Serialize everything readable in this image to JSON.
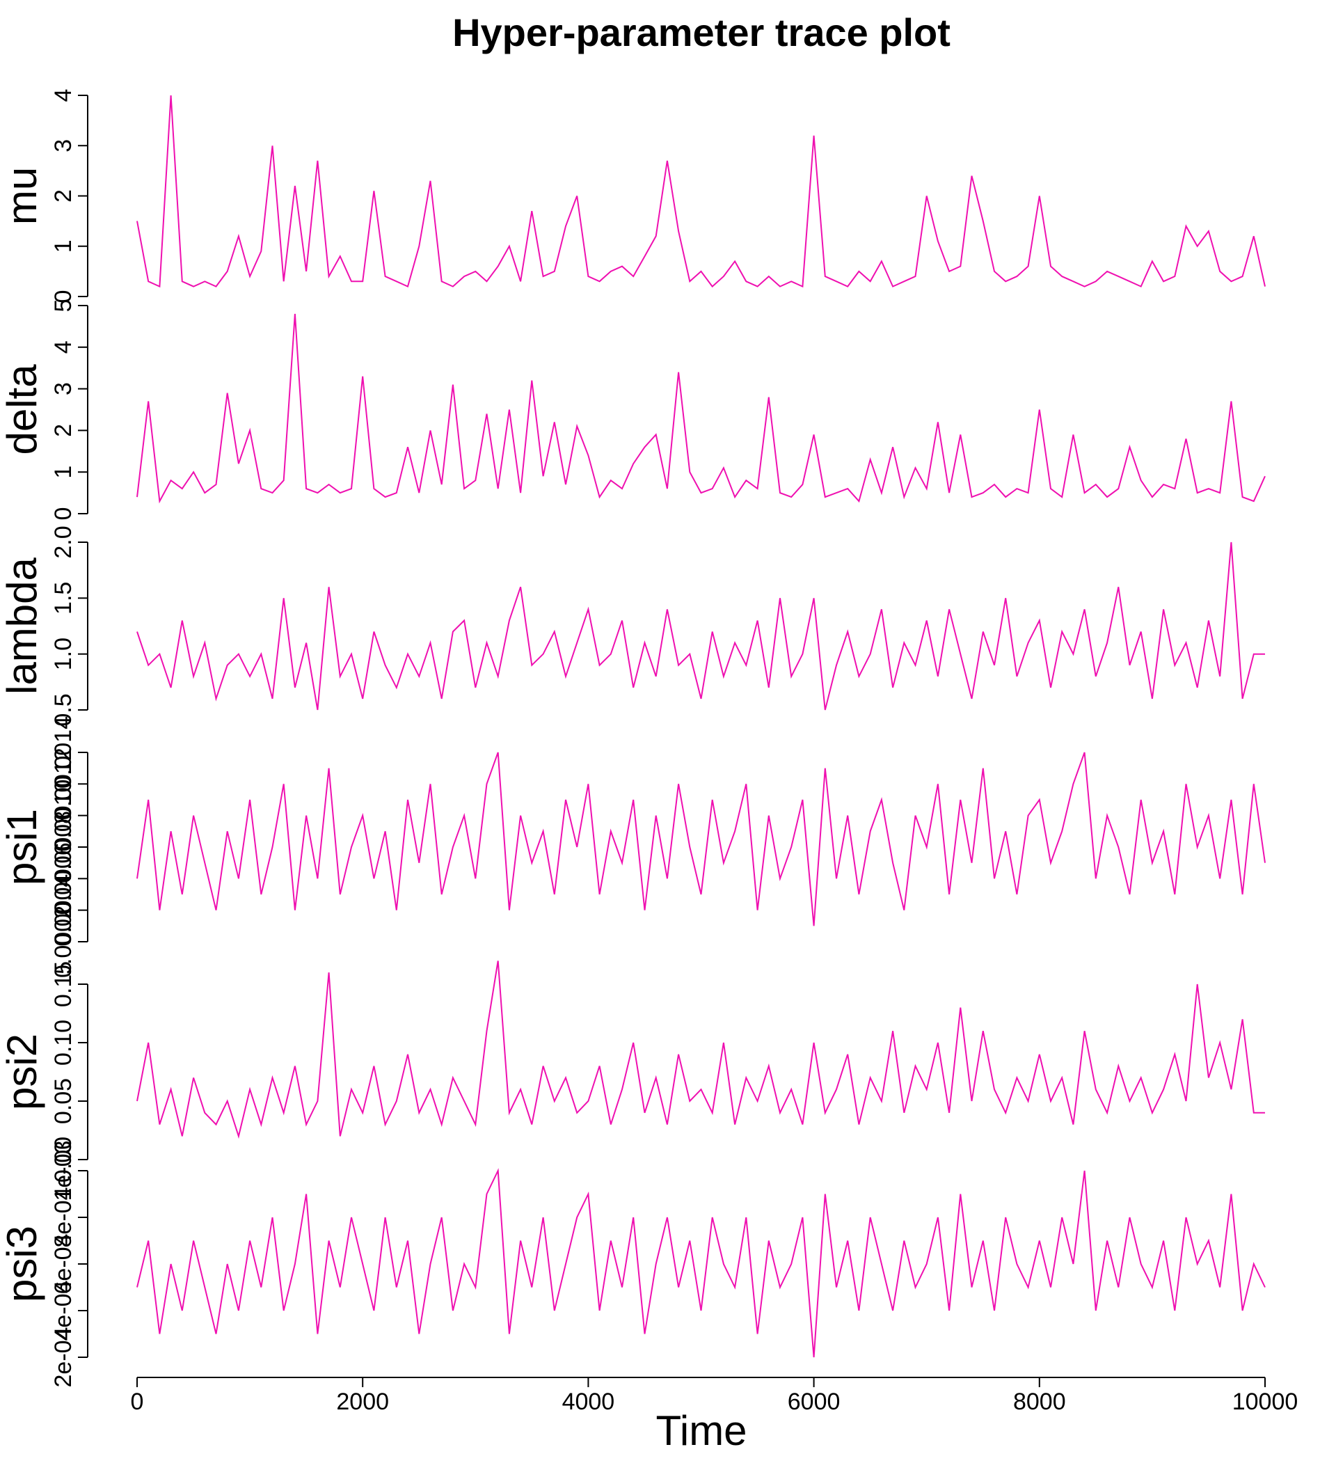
{
  "title": "Hyper-parameter trace plot",
  "chart_data": {
    "type": "line",
    "xlabel": "Time",
    "color": "#ef10b0",
    "xlim": [
      0,
      10000
    ],
    "xticks": [
      0,
      2000,
      4000,
      6000,
      8000,
      10000
    ],
    "x": [
      0,
      100,
      200,
      300,
      400,
      500,
      600,
      700,
      800,
      900,
      1000,
      1100,
      1200,
      1300,
      1400,
      1500,
      1600,
      1700,
      1800,
      1900,
      2000,
      2100,
      2200,
      2300,
      2400,
      2500,
      2600,
      2700,
      2800,
      2900,
      3000,
      3100,
      3200,
      3300,
      3400,
      3500,
      3600,
      3700,
      3800,
      3900,
      4000,
      4100,
      4200,
      4300,
      4400,
      4500,
      4600,
      4700,
      4800,
      4900,
      5000,
      5100,
      5200,
      5300,
      5400,
      5500,
      5600,
      5700,
      5800,
      5900,
      6000,
      6100,
      6200,
      6300,
      6400,
      6500,
      6600,
      6700,
      6800,
      6900,
      7000,
      7100,
      7200,
      7300,
      7400,
      7500,
      7600,
      7700,
      7800,
      7900,
      8000,
      8100,
      8200,
      8300,
      8400,
      8500,
      8600,
      8700,
      8800,
      8900,
      9000,
      9100,
      9200,
      9300,
      9400,
      9500,
      9600,
      9700,
      9800,
      9900,
      10000
    ],
    "panels": [
      {
        "ylabel": "mu",
        "ylim": [
          0,
          4
        ],
        "yticks": [
          0,
          1,
          2,
          3,
          4
        ],
        "values": [
          1.5,
          0.3,
          0.2,
          4.0,
          0.3,
          0.2,
          0.3,
          0.2,
          0.5,
          1.2,
          0.4,
          0.9,
          3.0,
          0.3,
          2.2,
          0.5,
          2.7,
          0.4,
          0.8,
          0.3,
          0.3,
          2.1,
          0.4,
          0.3,
          0.2,
          1.0,
          2.3,
          0.3,
          0.2,
          0.4,
          0.5,
          0.3,
          0.6,
          1.0,
          0.3,
          1.7,
          0.4,
          0.5,
          1.4,
          2.0,
          0.4,
          0.3,
          0.5,
          0.6,
          0.4,
          0.8,
          1.2,
          2.7,
          1.3,
          0.3,
          0.5,
          0.2,
          0.4,
          0.7,
          0.3,
          0.2,
          0.4,
          0.2,
          0.3,
          0.2,
          3.2,
          0.4,
          0.3,
          0.2,
          0.5,
          0.3,
          0.7,
          0.2,
          0.3,
          0.4,
          2.0,
          1.1,
          0.5,
          0.6,
          2.4,
          1.5,
          0.5,
          0.3,
          0.4,
          0.6,
          2.0,
          0.6,
          0.4,
          0.3,
          0.2,
          0.3,
          0.5,
          0.4,
          0.3,
          0.2,
          0.7,
          0.3,
          0.4,
          1.4,
          1.0,
          1.3,
          0.5,
          0.3,
          0.4,
          1.2,
          0.2
        ]
      },
      {
        "ylabel": "delta",
        "ylim": [
          0,
          5
        ],
        "yticks": [
          0,
          1,
          2,
          3,
          4,
          5
        ],
        "values": [
          0.4,
          2.7,
          0.3,
          0.8,
          0.6,
          1.0,
          0.5,
          0.7,
          2.9,
          1.2,
          2.0,
          0.6,
          0.5,
          0.8,
          4.8,
          0.6,
          0.5,
          0.7,
          0.5,
          0.6,
          3.3,
          0.6,
          0.4,
          0.5,
          1.6,
          0.5,
          2.0,
          0.7,
          3.1,
          0.6,
          0.8,
          2.4,
          0.6,
          2.5,
          0.5,
          3.2,
          0.9,
          2.2,
          0.7,
          2.1,
          1.4,
          0.4,
          0.8,
          0.6,
          1.2,
          1.6,
          1.9,
          0.6,
          3.4,
          1.0,
          0.5,
          0.6,
          1.1,
          0.4,
          0.8,
          0.6,
          2.8,
          0.5,
          0.4,
          0.7,
          1.9,
          0.4,
          0.5,
          0.6,
          0.3,
          1.3,
          0.5,
          1.6,
          0.4,
          1.1,
          0.6,
          2.2,
          0.5,
          1.9,
          0.4,
          0.5,
          0.7,
          0.4,
          0.6,
          0.5,
          2.5,
          0.6,
          0.4,
          1.9,
          0.5,
          0.7,
          0.4,
          0.6,
          1.6,
          0.8,
          0.4,
          0.7,
          0.6,
          1.8,
          0.5,
          0.6,
          0.5,
          2.7,
          0.4,
          0.3,
          0.9
        ]
      },
      {
        "ylabel": "lambda",
        "ylim": [
          0.5,
          2
        ],
        "yticks": [
          0.5,
          {
            "value": 1,
            "label": "1.0"
          },
          1.5,
          {
            "value": 2,
            "label": "2.0"
          }
        ],
        "values": [
          1.2,
          0.9,
          1.0,
          0.7,
          1.3,
          0.8,
          1.1,
          0.6,
          0.9,
          1.0,
          0.8,
          1.0,
          0.6,
          1.5,
          0.7,
          1.1,
          0.5,
          1.6,
          0.8,
          1.0,
          0.6,
          1.2,
          0.9,
          0.7,
          1.0,
          0.8,
          1.1,
          0.6,
          1.2,
          1.3,
          0.7,
          1.1,
          0.8,
          1.3,
          1.6,
          0.9,
          1.0,
          1.2,
          0.8,
          1.1,
          1.4,
          0.9,
          1.0,
          1.3,
          0.7,
          1.1,
          0.8,
          1.4,
          0.9,
          1.0,
          0.6,
          1.2,
          0.8,
          1.1,
          0.9,
          1.3,
          0.7,
          1.5,
          0.8,
          1.0,
          1.5,
          0.5,
          0.9,
          1.2,
          0.8,
          1.0,
          1.4,
          0.7,
          1.1,
          0.9,
          1.3,
          0.8,
          1.4,
          1.0,
          0.6,
          1.2,
          0.9,
          1.5,
          0.8,
          1.1,
          1.3,
          0.7,
          1.2,
          1.0,
          1.4,
          0.8,
          1.1,
          1.6,
          0.9,
          1.2,
          0.6,
          1.4,
          0.9,
          1.1,
          0.7,
          1.3,
          0.8,
          2.0,
          0.6,
          1.0,
          1.0
        ]
      },
      {
        "ylabel": "psi1",
        "ylim": [
          0.0002,
          0.0014
        ],
        "yticks": [
          0.0002,
          0.0004,
          0.0006,
          0.0008,
          {
            "value": 0.001,
            "label": "0.0010"
          },
          0.0012,
          0.0014
        ],
        "values": [
          0.0006,
          0.0011,
          0.0004,
          0.0009,
          0.0005,
          0.001,
          0.0007,
          0.0004,
          0.0009,
          0.0006,
          0.0011,
          0.0005,
          0.0008,
          0.0012,
          0.0004,
          0.001,
          0.0006,
          0.0013,
          0.0005,
          0.0008,
          0.001,
          0.0006,
          0.0009,
          0.0004,
          0.0011,
          0.0007,
          0.0012,
          0.0005,
          0.0008,
          0.001,
          0.0006,
          0.0012,
          0.0014,
          0.0004,
          0.001,
          0.0007,
          0.0009,
          0.0005,
          0.0011,
          0.0008,
          0.0012,
          0.0005,
          0.0009,
          0.0007,
          0.0011,
          0.0004,
          0.001,
          0.0006,
          0.0012,
          0.0008,
          0.0005,
          0.0011,
          0.0007,
          0.0009,
          0.0012,
          0.0004,
          0.001,
          0.0006,
          0.0008,
          0.0011,
          0.0003,
          0.0013,
          0.0006,
          0.001,
          0.0005,
          0.0009,
          0.0011,
          0.0007,
          0.0004,
          0.001,
          0.0008,
          0.0012,
          0.0005,
          0.0011,
          0.0007,
          0.0013,
          0.0006,
          0.0009,
          0.0005,
          0.001,
          0.0011,
          0.0007,
          0.0009,
          0.0012,
          0.0014,
          0.0006,
          0.001,
          0.0008,
          0.0005,
          0.0011,
          0.0007,
          0.0009,
          0.0005,
          0.0012,
          0.0008,
          0.001,
          0.0006,
          0.0011,
          0.0005,
          0.0012,
          0.0007
        ]
      },
      {
        "ylabel": "psi2",
        "ylim": [
          0,
          0.15
        ],
        "yticks": [
          {
            "value": 0,
            "label": "0.00"
          },
          0.05,
          {
            "value": 0.1,
            "label": "0.10"
          },
          0.15
        ],
        "values": [
          0.05,
          0.1,
          0.03,
          0.06,
          0.02,
          0.07,
          0.04,
          0.03,
          0.05,
          0.02,
          0.06,
          0.03,
          0.07,
          0.04,
          0.08,
          0.03,
          0.05,
          0.16,
          0.02,
          0.06,
          0.04,
          0.08,
          0.03,
          0.05,
          0.09,
          0.04,
          0.06,
          0.03,
          0.07,
          0.05,
          0.03,
          0.11,
          0.17,
          0.04,
          0.06,
          0.03,
          0.08,
          0.05,
          0.07,
          0.04,
          0.05,
          0.08,
          0.03,
          0.06,
          0.1,
          0.04,
          0.07,
          0.03,
          0.09,
          0.05,
          0.06,
          0.04,
          0.1,
          0.03,
          0.07,
          0.05,
          0.08,
          0.04,
          0.06,
          0.03,
          0.1,
          0.04,
          0.06,
          0.09,
          0.03,
          0.07,
          0.05,
          0.11,
          0.04,
          0.08,
          0.06,
          0.1,
          0.04,
          0.13,
          0.05,
          0.11,
          0.06,
          0.04,
          0.07,
          0.05,
          0.09,
          0.05,
          0.07,
          0.03,
          0.11,
          0.06,
          0.04,
          0.08,
          0.05,
          0.07,
          0.04,
          0.06,
          0.09,
          0.05,
          0.15,
          0.07,
          0.1,
          0.06,
          0.12,
          0.04,
          0.04
        ]
      },
      {
        "ylabel": "psi3",
        "ylim": [
          0.0002,
          0.001
        ],
        "yticks": [
          {
            "value": 0.0002,
            "label": "2e-04"
          },
          {
            "value": 0.0004,
            "label": "4e-04"
          },
          {
            "value": 0.0006,
            "label": "6e-04"
          },
          {
            "value": 0.0008,
            "label": "8e-04"
          },
          {
            "value": 0.001,
            "label": "1e-03"
          }
        ],
        "values": [
          0.0005,
          0.0007,
          0.0003,
          0.0006,
          0.0004,
          0.0007,
          0.0005,
          0.0003,
          0.0006,
          0.0004,
          0.0007,
          0.0005,
          0.0008,
          0.0004,
          0.0006,
          0.0009,
          0.0003,
          0.0007,
          0.0005,
          0.0008,
          0.0006,
          0.0004,
          0.0008,
          0.0005,
          0.0007,
          0.0003,
          0.0006,
          0.0008,
          0.0004,
          0.0006,
          0.0005,
          0.0009,
          0.001,
          0.0003,
          0.0007,
          0.0005,
          0.0008,
          0.0004,
          0.0006,
          0.0008,
          0.0009,
          0.0004,
          0.0007,
          0.0005,
          0.0008,
          0.0003,
          0.0006,
          0.0008,
          0.0005,
          0.0007,
          0.0004,
          0.0008,
          0.0006,
          0.0005,
          0.0008,
          0.0003,
          0.0007,
          0.0005,
          0.0006,
          0.0008,
          0.0002,
          0.0009,
          0.0005,
          0.0007,
          0.0004,
          0.0008,
          0.0006,
          0.0004,
          0.0007,
          0.0005,
          0.0006,
          0.0008,
          0.0004,
          0.0009,
          0.0005,
          0.0007,
          0.0004,
          0.0008,
          0.0006,
          0.0005,
          0.0007,
          0.0005,
          0.0008,
          0.0006,
          0.001,
          0.0004,
          0.0007,
          0.0005,
          0.0008,
          0.0006,
          0.0005,
          0.0007,
          0.0004,
          0.0008,
          0.0006,
          0.0007,
          0.0005,
          0.0009,
          0.0004,
          0.0006,
          0.0005
        ]
      }
    ]
  }
}
